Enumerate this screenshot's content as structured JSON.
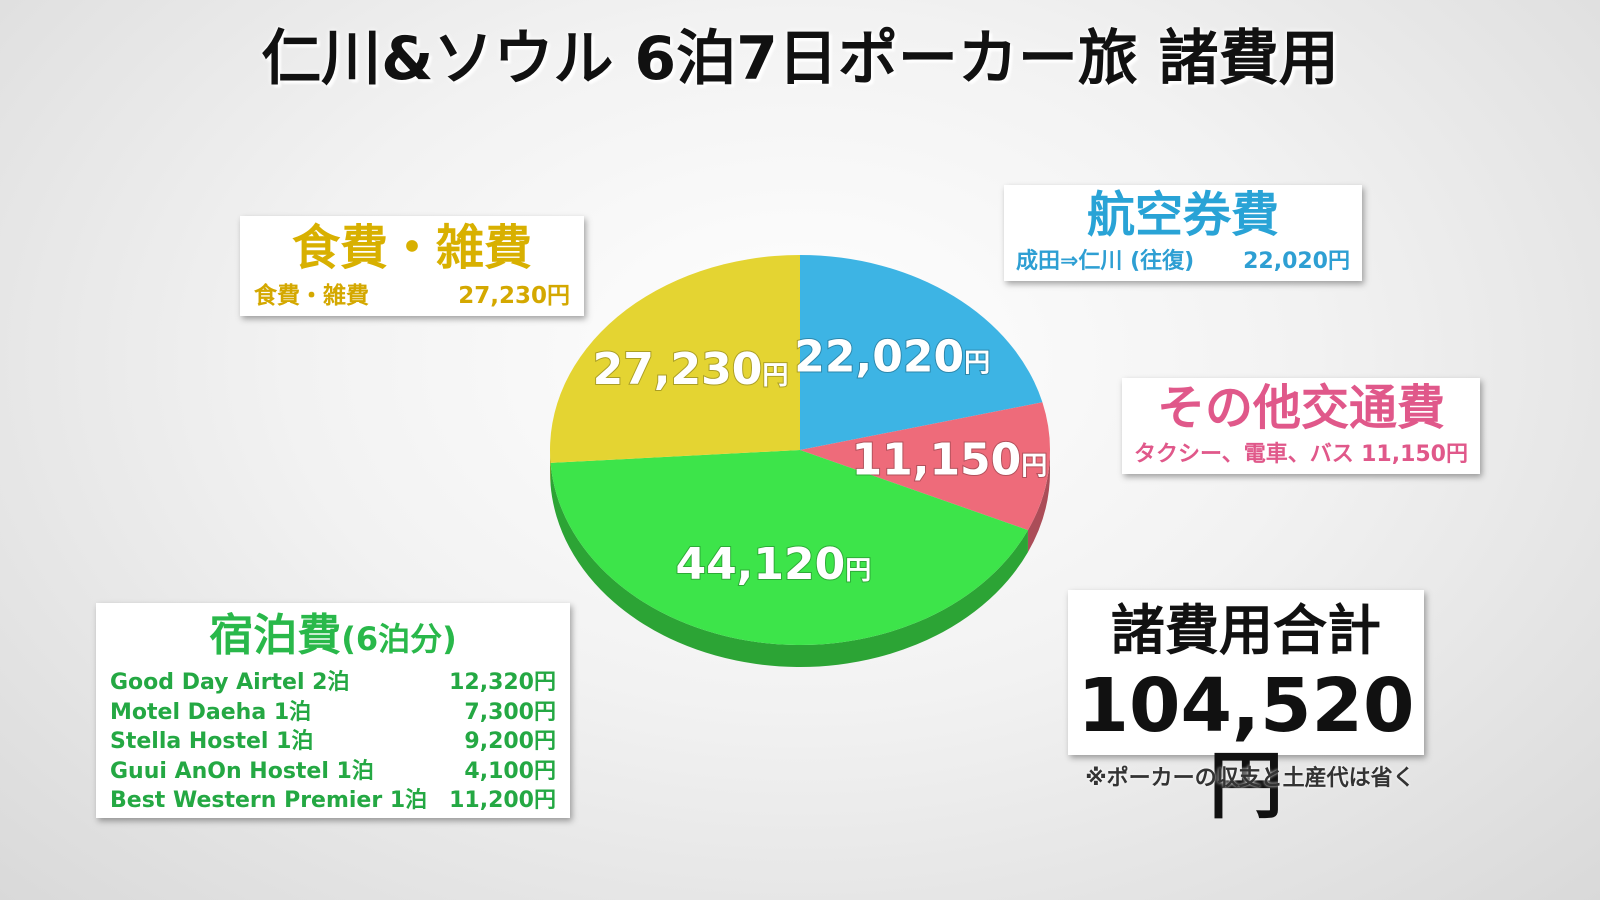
{
  "title": "仁川&ソウル 6泊7日ポーカー旅 諸費用",
  "colors": {
    "air": "#3db4e4",
    "transport": "#ee6b7a",
    "hotel": "#3de44a",
    "food": "#e4d432"
  },
  "chart_data": {
    "type": "pie",
    "unit": "円",
    "slices": [
      {
        "name": "航空券費",
        "value": 22020,
        "label": "22,020",
        "color": "#3db4e4"
      },
      {
        "name": "その他交通費",
        "value": 11150,
        "label": "11,150",
        "color": "#ee6b7a"
      },
      {
        "name": "宿泊費",
        "value": 44120,
        "label": "44,120",
        "color": "#3de44a"
      },
      {
        "name": "食費・雑費",
        "value": 27230,
        "label": "27,230",
        "color": "#e4d432"
      }
    ],
    "total": 104520
  },
  "food_box": {
    "title": "食費・雑費",
    "item_label": "食費・雑費",
    "item_value": "27,230円"
  },
  "air_box": {
    "title": "航空券費",
    "item_label": "成田⇒仁川 (往復)",
    "item_value": "22,020円"
  },
  "transport_box": {
    "title": "その他交通費",
    "item_label": "タクシー、電車、バス",
    "item_value": "11,150円"
  },
  "hotel_box": {
    "title": "宿泊費",
    "subtitle": "(6泊分)",
    "items": [
      {
        "label": "Good Day Airtel 2泊",
        "value": "12,320円"
      },
      {
        "label": "Motel Daeha 1泊",
        "value": "7,300円"
      },
      {
        "label": "Stella Hostel 1泊",
        "value": "9,200円"
      },
      {
        "label": "Guui AnOn Hostel 1泊",
        "value": "4,100円"
      },
      {
        "label": "Best Western Premier 1泊",
        "value": "11,200円"
      }
    ]
  },
  "total_box": {
    "label": "諸費用合計",
    "value": "104,520円"
  },
  "note": "※ポーカーの収支と土産代は省く"
}
